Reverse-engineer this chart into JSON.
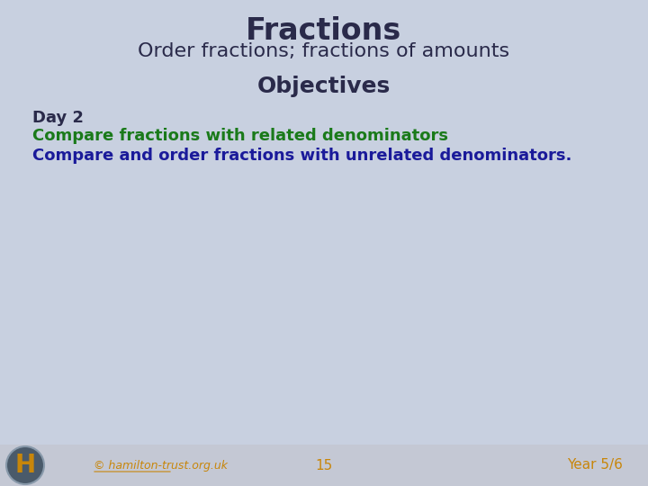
{
  "title": "Fractions",
  "subtitle": "Order fractions; fractions of amounts",
  "objectives_header": "Objectives",
  "day_label": "Day 2",
  "line1": "Compare fractions with related denominators",
  "line2": "Compare and order fractions with unrelated denominators.",
  "line1_color": "#1a7a1a",
  "line2_color": "#1a1a9a",
  "day_color": "#2a2a4a",
  "title_color": "#2a2a4a",
  "bg_color": "#c8d0e0",
  "footer_bg_color": "#c4c8d4",
  "footer_text_color": "#c8860a",
  "copyright_text": "© hamilton-trust.org.uk",
  "page_number": "15",
  "year_label": "Year 5/6",
  "logo_bg_color": "#4a5a6a",
  "logo_text_color": "#c8860a"
}
